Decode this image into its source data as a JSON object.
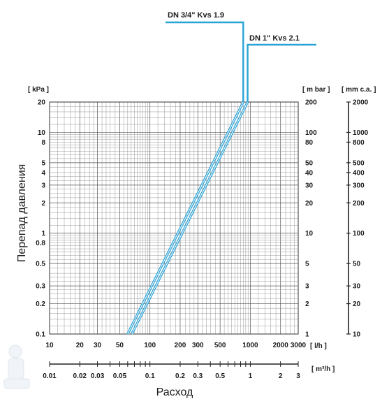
{
  "chart_data": {
    "type": "line",
    "scale": "log-log",
    "title": "",
    "xlabel": "Расход",
    "ylabel": "Перепад давления",
    "x_unit": "[ l/h ]",
    "x2_unit": "[ m³/h ]",
    "y_unit_left": "[ kPa ]",
    "y_unit_right1": "[ m bar ]",
    "y_unit_right2": "[ mm c.a. ]",
    "xlim": [
      10,
      3000
    ],
    "ylim": [
      0.1,
      20
    ],
    "x_ticks": [
      "10",
      "20",
      "30",
      "50",
      "100",
      "200",
      "300",
      "500",
      "1000",
      "2000",
      "3000"
    ],
    "x_tick_values": [
      10,
      20,
      30,
      50,
      100,
      200,
      300,
      500,
      1000,
      2000,
      3000
    ],
    "x2_ticks": [
      "0.01",
      "0.02",
      "0.03",
      "0.05",
      "0.1",
      "0.2",
      "0.3",
      "0.5",
      "1",
      "2",
      "3"
    ],
    "x2_tick_values": [
      0.01,
      0.02,
      0.03,
      0.05,
      0.1,
      0.2,
      0.3,
      0.5,
      1,
      2,
      3
    ],
    "y_ticks": [
      "0.1",
      "0.2",
      "0.3",
      "0.5",
      "0.8",
      "1",
      "2",
      "3",
      "4",
      "5",
      "8",
      "10",
      "20"
    ],
    "y_tick_values": [
      0.1,
      0.2,
      0.3,
      0.5,
      0.8,
      1,
      2,
      3,
      4,
      5,
      8,
      10,
      20
    ],
    "y2_ticks": [
      "1",
      "2",
      "3",
      "5",
      "10",
      "20",
      "30",
      "40",
      "50",
      "80",
      "100",
      "200"
    ],
    "y2_tick_values": [
      0.1,
      0.2,
      0.3,
      0.5,
      1,
      2,
      3,
      4,
      5,
      8,
      10,
      20
    ],
    "y3_ticks": [
      "10",
      "20",
      "30",
      "50",
      "100",
      "200",
      "300",
      "400",
      "500",
      "800",
      "1000",
      "2000"
    ],
    "y3_tick_values": [
      0.1,
      0.2,
      0.3,
      0.5,
      1,
      2,
      3,
      4,
      5,
      8,
      10,
      20
    ],
    "grid": true,
    "series": [
      {
        "name": "DN 3/4\" Kvs 1.9",
        "color": "#29a3d6",
        "points": [
          [
            60,
            0.1
          ],
          [
            850,
            20
          ]
        ]
      },
      {
        "name": "DN 1\" Kvs 2.1",
        "color": "#29a3d6",
        "points": [
          [
            66,
            0.1
          ],
          [
            940,
            20
          ]
        ]
      }
    ]
  }
}
